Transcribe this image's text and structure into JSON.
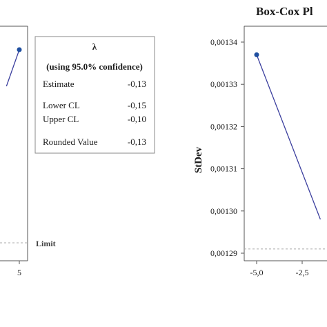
{
  "chart_data": [
    {
      "type": "line",
      "panel": "left",
      "title": "",
      "xticks": [
        "5"
      ],
      "limit_label": "Limit",
      "legend": {
        "header": "λ",
        "subheader": "(using 95.0% confidence)",
        "rows": [
          {
            "label": "Estimate",
            "value": "-0,13"
          },
          {
            "label": "Lower CL",
            "value": "-0,15"
          },
          {
            "label": "Upper CL",
            "value": "-0,10"
          },
          {
            "label": "Rounded Value",
            "value": "-0,13"
          }
        ]
      },
      "series": [
        {
          "x": [
            4.6,
            5.0
          ],
          "y": [
            0.55,
            1.0
          ]
        }
      ],
      "colors": {
        "line": "#3b3f9e",
        "marker": "#1f4fa0",
        "limit": "#aaaaaa"
      }
    },
    {
      "type": "line",
      "panel": "right",
      "title": "Box-Cox Pl",
      "ylabel": "StDev",
      "yticks": [
        "0,00134",
        "0,00133",
        "0,00132",
        "0,00131",
        "0,00130",
        "0,00129"
      ],
      "xticks": [
        "-5,0",
        "-2,5"
      ],
      "ylim": [
        0.00129,
        0.00134
      ],
      "xlim": [
        -5.0,
        -2.5
      ],
      "limit_y": 0.001291,
      "series": [
        {
          "x": [
            -5.0,
            -1.5
          ],
          "y": [
            0.001337,
            0.001298
          ]
        }
      ],
      "colors": {
        "line": "#3b3f9e",
        "marker": "#1f4fa0",
        "limit": "#aaaaaa"
      }
    }
  ]
}
